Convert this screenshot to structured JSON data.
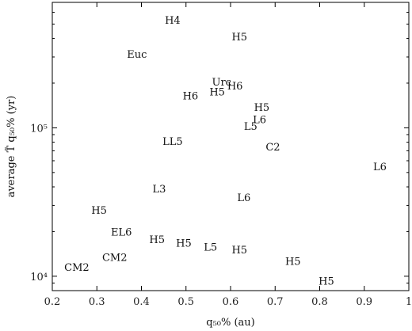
{
  "chart_data": {
    "type": "scatter",
    "title": "",
    "xlabel": "q₅₀% (au)",
    "ylabel": "average T̃ q₅₀% (yr)",
    "xlim": [
      0.2,
      1.0
    ],
    "ylim": [
      8000,
      700000
    ],
    "yscale": "log",
    "grid": false,
    "x_ticks": [
      0.2,
      0.3,
      0.4,
      0.5,
      0.6,
      0.7,
      0.8,
      0.9,
      1.0
    ],
    "x_tick_labels": [
      "0.2",
      "0.3",
      "0.4",
      "0.5",
      "0.6",
      "0.7",
      "0.8",
      "0.9",
      "1"
    ],
    "y_major_ticks": [
      10000,
      100000
    ],
    "y_tick_labels": [
      "10⁴",
      "10⁵"
    ],
    "points": [
      {
        "label": "H4",
        "x": 0.47,
        "y": 535000
      },
      {
        "label": "H5",
        "x": 0.62,
        "y": 412000
      },
      {
        "label": "Euc",
        "x": 0.39,
        "y": 315000
      },
      {
        "label": "Urc",
        "x": 0.58,
        "y": 205000
      },
      {
        "label": "H6",
        "x": 0.61,
        "y": 193000
      },
      {
        "label": "H6",
        "x": 0.51,
        "y": 165000
      },
      {
        "label": "H5",
        "x": 0.57,
        "y": 176000
      },
      {
        "label": "H5",
        "x": 0.67,
        "y": 138000
      },
      {
        "label": "L6",
        "x": 0.665,
        "y": 114000
      },
      {
        "label": "L5",
        "x": 0.645,
        "y": 103000
      },
      {
        "label": "LL5",
        "x": 0.47,
        "y": 81500
      },
      {
        "label": "C2",
        "x": 0.695,
        "y": 75000
      },
      {
        "label": "L6",
        "x": 0.935,
        "y": 55000
      },
      {
        "label": "L3",
        "x": 0.44,
        "y": 39000
      },
      {
        "label": "L6",
        "x": 0.63,
        "y": 34000
      },
      {
        "label": "H5",
        "x": 0.305,
        "y": 28000
      },
      {
        "label": "EL6",
        "x": 0.355,
        "y": 20000
      },
      {
        "label": "H5",
        "x": 0.435,
        "y": 17800
      },
      {
        "label": "H5",
        "x": 0.495,
        "y": 16800
      },
      {
        "label": "L5",
        "x": 0.555,
        "y": 15800
      },
      {
        "label": "H5",
        "x": 0.62,
        "y": 15200
      },
      {
        "label": "CM2",
        "x": 0.34,
        "y": 13500
      },
      {
        "label": "H5",
        "x": 0.74,
        "y": 12700
      },
      {
        "label": "CM2",
        "x": 0.255,
        "y": 11600
      },
      {
        "label": "H5",
        "x": 0.815,
        "y": 9300
      }
    ]
  }
}
